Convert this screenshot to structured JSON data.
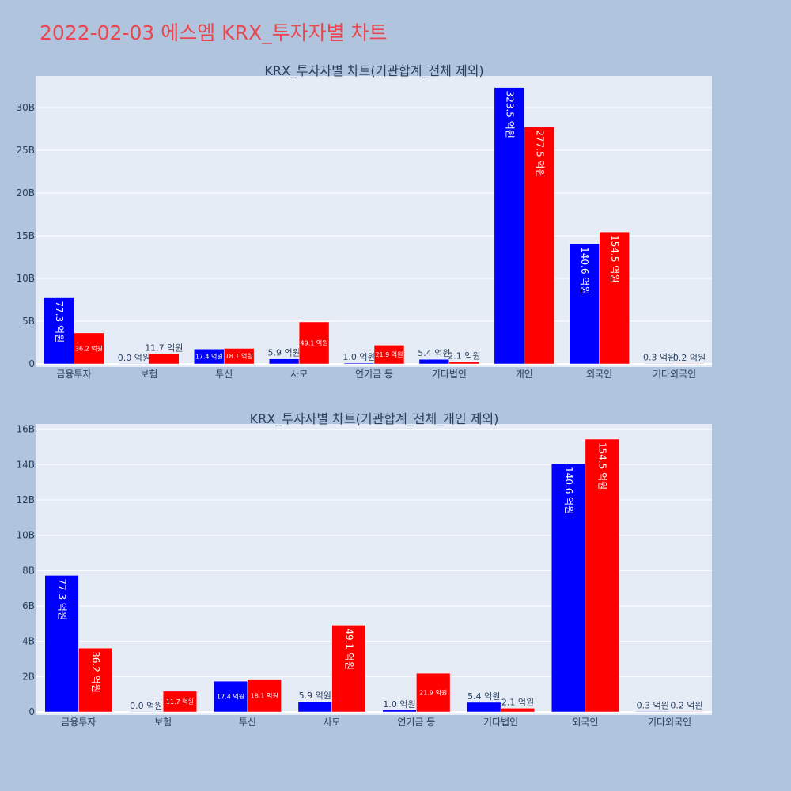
{
  "title": "2022-02-03 에스엠 KRX_투자자별 차트",
  "colors": {
    "buy": "#0000ff",
    "sell": "#ff0000",
    "plot_bg": "#e5ecf6",
    "page_bg": "#b0c4de",
    "title": "#e8474f"
  },
  "chart_data": [
    {
      "type": "bar",
      "title": "KRX_투자자별 차트(기관합계_전체 제외)",
      "categories": [
        "금융투자",
        "보험",
        "투신",
        "사모",
        "연기금 등",
        "기타법인",
        "개인",
        "외국인",
        "기타외국인"
      ],
      "series": [
        {
          "values": [
            7.73,
            0.0,
            1.74,
            0.59,
            0.1,
            0.54,
            32.35,
            14.06,
            0.03
          ],
          "labels": [
            "77.3 억원",
            "0.0 억원",
            "17.4 억원",
            "5.9 억원",
            "1.0 억원",
            "5.4 억원",
            "323.5 억원",
            "140.6 억원",
            "0.3 억원"
          ]
        },
        {
          "values": [
            3.62,
            1.17,
            1.81,
            4.91,
            2.19,
            0.21,
            27.75,
            15.45,
            0.02
          ],
          "labels": [
            "36.2 억원",
            "11.7 억원",
            "18.1 억원",
            "49.1 억원",
            "21.9 억원",
            "2.1 억원",
            "277.5 억원",
            "154.5 억원",
            "0.2 억원"
          ]
        }
      ],
      "ylim": [
        0,
        33.7
      ],
      "yticks": [
        0,
        5,
        10,
        15,
        20,
        25,
        30
      ],
      "ytick_labels": [
        "0",
        "5B",
        "10B",
        "15B",
        "20B",
        "25B",
        "30B"
      ],
      "grid": true,
      "legend": "none"
    },
    {
      "type": "bar",
      "title": "KRX_투자자별 차트(기관합계_전체_개인 제외)",
      "categories": [
        "금융투자",
        "보험",
        "투신",
        "사모",
        "연기금 등",
        "기타법인",
        "외국인",
        "기타외국인"
      ],
      "series": [
        {
          "values": [
            7.73,
            0.0,
            1.74,
            0.59,
            0.1,
            0.54,
            14.06,
            0.03
          ],
          "labels": [
            "77.3 억원",
            "0.0 억원",
            "17.4 억원",
            "5.9 억원",
            "1.0 억원",
            "5.4 억원",
            "140.6 억원",
            "0.3 억원"
          ]
        },
        {
          "values": [
            3.62,
            1.17,
            1.81,
            4.91,
            2.19,
            0.21,
            15.45,
            0.02
          ],
          "labels": [
            "36.2 억원",
            "11.7 억원",
            "18.1 억원",
            "49.1 억원",
            "21.9 억원",
            "2.1 억원",
            "154.5 억원",
            "0.2 억원"
          ]
        }
      ],
      "ylim": [
        0,
        16.3
      ],
      "yticks": [
        0,
        2,
        4,
        6,
        8,
        10,
        12,
        14,
        16
      ],
      "ytick_labels": [
        "0",
        "2B",
        "4B",
        "6B",
        "8B",
        "10B",
        "12B",
        "14B",
        "16B"
      ],
      "grid": true,
      "legend": "none"
    }
  ]
}
